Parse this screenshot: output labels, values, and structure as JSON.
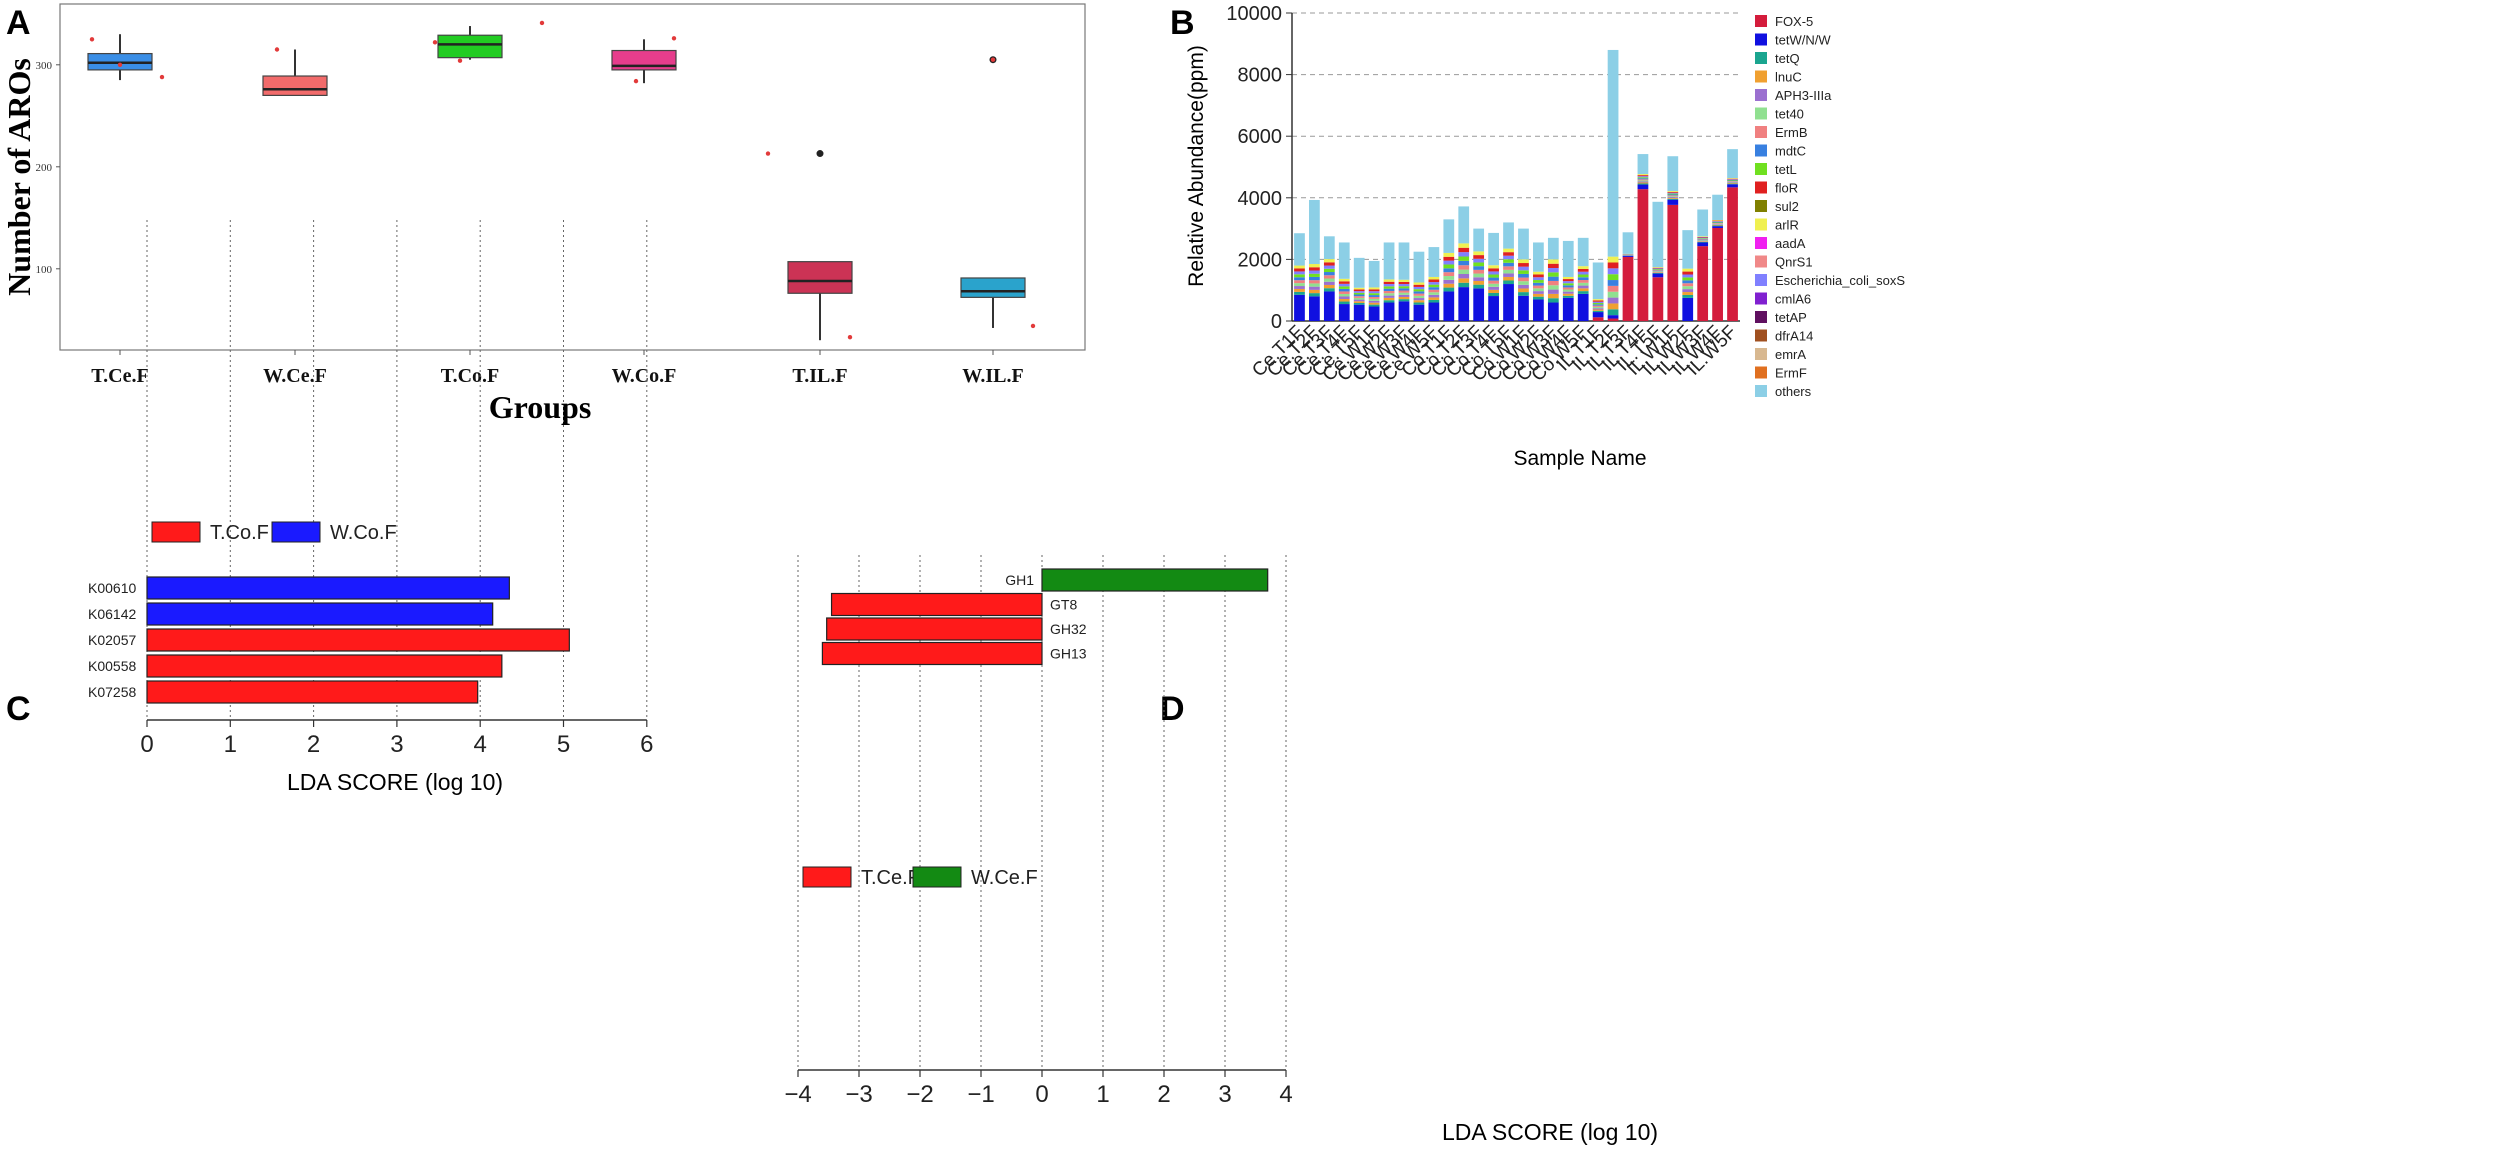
{
  "chart_data": [
    {
      "panel": "A",
      "type": "box",
      "xlabel": "Groups",
      "ylabel": "Number of AROs",
      "yticks": [
        100,
        200,
        300
      ],
      "ylim": [
        20,
        350
      ],
      "categories": [
        "T.Ce.F",
        "W.Ce.F",
        "T.Co.F",
        "W.Co.F",
        "T.IL.F",
        "W.IL.F"
      ],
      "colors": [
        "#3a8ee6",
        "#f26b6b",
        "#22cc22",
        "#e63d8c",
        "#cc3355",
        "#2aa3cc"
      ],
      "boxes": [
        {
          "whislo": 285,
          "q1": 295,
          "med": 302,
          "q3": 311,
          "whishi": 330,
          "outliers": []
        },
        {
          "whislo": 270,
          "q1": 270,
          "med": 276,
          "q3": 289,
          "whishi": 315,
          "outliers": []
        },
        {
          "whislo": 305,
          "q1": 307,
          "med": 320,
          "q3": 329,
          "whishi": 338,
          "outliers": []
        },
        {
          "whislo": 282,
          "q1": 295,
          "med": 299,
          "q3": 314,
          "whishi": 325,
          "outliers": []
        },
        {
          "whislo": 30,
          "q1": 76,
          "med": 88,
          "q3": 107,
          "whishi": 107,
          "outliers": [
            213
          ]
        },
        {
          "whislo": 42,
          "q1": 72,
          "med": 78,
          "q3": 91,
          "whishi": 91,
          "outliers": [
            305
          ]
        }
      ]
    },
    {
      "panel": "B",
      "type": "stacked-bar",
      "xlabel": "Sample Name",
      "ylabel": "Relative Abundance(ppm)",
      "yticks": [
        0,
        2000,
        4000,
        6000,
        8000,
        10000
      ],
      "ylim": [
        0,
        10000
      ],
      "samples": [
        "Ce.T1F",
        "Ce.T2F",
        "Ce.T3F",
        "Ce.T4F",
        "Ce.T5F",
        "Ce.W1F",
        "Ce.W2F",
        "Ce.W3F",
        "Ce.W4F",
        "Ce.W5F",
        "Co.T1F",
        "Co.T2F",
        "Co.T3F",
        "Co.T4F",
        "Co.T5F",
        "Co.W1F",
        "Co.W2F",
        "Co.W3F",
        "Co.W4F",
        "Co.W5F",
        "IL.T1F",
        "IL.T2F",
        "IL.T3F",
        "IL.T4F",
        "IL.T5F",
        "IL.W1F",
        "IL.W2F",
        "IL.W3F",
        "IL.W4F",
        "IL.W5F"
      ],
      "totals": [
        2850,
        3930,
        2750,
        2550,
        2050,
        1950,
        2550,
        2550,
        2250,
        2400,
        3300,
        3720,
        3000,
        2860,
        3200,
        3000,
        2550,
        2700,
        2600,
        2700,
        1900,
        8800,
        2880,
        5420,
        3870,
        5350,
        2950,
        3620,
        4100,
        5580
      ],
      "fox5": [
        0,
        0,
        0,
        0,
        0,
        0,
        0,
        0,
        0,
        0,
        0,
        0,
        0,
        0,
        0,
        0,
        0,
        0,
        0,
        0,
        120,
        80,
        2080,
        4280,
        1420,
        3770,
        0,
        2430,
        3020,
        4340
      ],
      "tetw": [
        850,
        800,
        960,
        550,
        530,
        470,
        600,
        640,
        530,
        600,
        960,
        1100,
        1060,
        810,
        1200,
        820,
        700,
        600,
        750,
        880,
        170,
        110,
        40,
        150,
        120,
        170,
        750,
        120,
        60,
        100
      ],
      "mid_sum": [
        950,
        1050,
        1050,
        820,
        550,
        620,
        750,
        700,
        720,
        830,
        1250,
        1420,
        1200,
        1000,
        1150,
        1180,
        900,
        1400,
        680,
        900,
        420,
        1900,
        60,
        340,
        210,
        280,
        950,
        200,
        200,
        200
      ],
      "legend": [
        "FOX-5",
        "tetW/N/W",
        "tetQ",
        "lnuC",
        "APH3-IIIa",
        "tet40",
        "ErmB",
        "mdtC",
        "tetL",
        "floR",
        "sul2",
        "arlR",
        "aadA",
        "QnrS1",
        "Escherichia_coli_soxS",
        "cmlA6",
        "tetAP",
        "dfrA14",
        "emrA",
        "ErmF",
        "others"
      ],
      "legend_colors": [
        "#d41c3c",
        "#1010e0",
        "#1aa58f",
        "#f0a030",
        "#9b70d0",
        "#90e090",
        "#f08080",
        "#3880e0",
        "#70e020",
        "#e02020",
        "#808000",
        "#f0f050",
        "#f020f0",
        "#f08888",
        "#8080ff",
        "#8020d0",
        "#601060",
        "#a05020",
        "#d8b890",
        "#e07020",
        "#8ccfe6"
      ],
      "segment_colors": [
        "#1aa58f",
        "#f0a030",
        "#9b70d0",
        "#90e090",
        "#f08080",
        "#3880e0",
        "#70e020",
        "#8080ff",
        "#e02020",
        "#f0f050"
      ]
    },
    {
      "panel": "C",
      "type": "bar",
      "orientation": "horizontal",
      "xlabel": "LDA SCORE (log 10)",
      "xticks": [
        0,
        1,
        2,
        3,
        4,
        5,
        6
      ],
      "xlim": [
        0,
        6
      ],
      "legend": [
        {
          "name": "T.Co.F",
          "color": "#ff1a1a"
        },
        {
          "name": "W.Co.F",
          "color": "#1a1aff"
        }
      ],
      "categories": [
        "K00610",
        "K06142",
        "K02057",
        "K00558",
        "K07258"
      ],
      "values": [
        4.35,
        4.15,
        5.07,
        4.26,
        3.97
      ],
      "groups": [
        "W.Co.F",
        "W.Co.F",
        "T.Co.F",
        "T.Co.F",
        "T.Co.F"
      ]
    },
    {
      "panel": "D",
      "type": "bar",
      "orientation": "horizontal",
      "xlabel": "LDA SCORE (log 10)",
      "xticks": [
        -4,
        -3,
        -2,
        -1,
        0,
        1,
        2,
        3,
        4
      ],
      "tick_labels": [
        "−4",
        "−3",
        "−2",
        "−1",
        "0",
        "1",
        "2",
        "3",
        "4"
      ],
      "xlim": [
        -4,
        4
      ],
      "legend": [
        {
          "name": "T.Ce.F",
          "color": "#ff1a1a"
        },
        {
          "name": "W.Ce.F",
          "color": "#138a13"
        }
      ],
      "categories": [
        "GH1",
        "GT8",
        "GH32",
        "GH13"
      ],
      "values": [
        3.7,
        -3.45,
        -3.53,
        -3.6
      ],
      "groups": [
        "W.Ce.F",
        "T.Ce.F",
        "T.Ce.F",
        "T.Ce.F"
      ]
    }
  ],
  "panel_labels": [
    "A",
    "B",
    "C",
    "D"
  ]
}
